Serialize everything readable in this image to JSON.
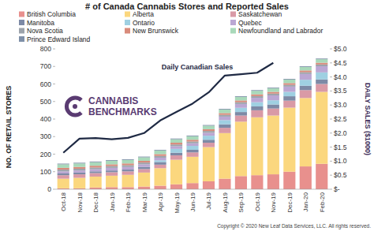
{
  "chart_data": {
    "type": "bar",
    "title": "# of Canada Cannabis Stores and Reported Sales",
    "y_label": "NO. OF RETAIL STORES",
    "y2_label": "DAILY SALES ($1000)",
    "annotations": [
      "CANNABIS",
      "BENCHMARKS",
      "Copyright © 2020 New Leaf Data Services, LLC. All rights reserved."
    ],
    "categories": [
      "Oct-18",
      "Nov-18",
      "Dec-18",
      "Jan-19",
      "Feb-19",
      "Mar-19",
      "Apr-19",
      "May-19",
      "Jun-19",
      "Jul-19",
      "Aug-19",
      "Sep-19",
      "Oct-19",
      "Nov-19",
      "Dec-19",
      "Jan-20",
      "Feb-20"
    ],
    "stacked": true,
    "grid": false,
    "legend": "top-left",
    "ylim": [
      0,
      800
    ],
    "yticks": [
      0,
      100,
      200,
      300,
      400,
      500,
      600,
      700,
      800
    ],
    "y2lim": [
      0,
      5
    ],
    "y2ticks": [
      {
        "value": 0,
        "label": "$-"
      },
      {
        "value": 0.5,
        "label": "$0.5"
      },
      {
        "value": 1,
        "label": "$1.0"
      },
      {
        "value": 1.5,
        "label": "$1.5"
      },
      {
        "value": 2,
        "label": "$2.0"
      },
      {
        "value": 2.5,
        "label": "$2.5"
      },
      {
        "value": 3,
        "label": "$3.0"
      },
      {
        "value": 3.5,
        "label": "$3.5"
      },
      {
        "value": 4,
        "label": "$4.0"
      },
      {
        "value": 4.5,
        "label": "$4.5"
      },
      {
        "value": 5,
        "label": "$5.0"
      }
    ],
    "series": [
      {
        "name": "British Columbia",
        "type": "bar",
        "color": "#e8908d",
        "values": [
          5,
          5,
          10,
          12,
          12,
          15,
          20,
          28,
          35,
          45,
          60,
          75,
          80,
          85,
          100,
          130,
          145
        ]
      },
      {
        "name": "Alberta",
        "type": "bar",
        "color": "#fbd77e",
        "values": [
          55,
          60,
          62,
          65,
          70,
          80,
          100,
          140,
          150,
          195,
          260,
          310,
          330,
          335,
          365,
          390,
          410
        ]
      },
      {
        "name": "Saskatchewan",
        "type": "bar",
        "color": "#d99aa6",
        "values": [
          20,
          20,
          20,
          20,
          20,
          20,
          20,
          25,
          25,
          25,
          30,
          35,
          40,
          40,
          40,
          45,
          45
        ]
      },
      {
        "name": "Manitoba",
        "type": "bar",
        "color": "#7d8aa6",
        "values": [
          10,
          10,
          10,
          10,
          10,
          12,
          15,
          15,
          15,
          17,
          20,
          20,
          22,
          23,
          25,
          25,
          26
        ]
      },
      {
        "name": "Ontario",
        "type": "bar",
        "color": "#9fd0e2",
        "values": [
          0,
          0,
          0,
          0,
          0,
          0,
          10,
          22,
          22,
          23,
          24,
          24,
          24,
          24,
          25,
          34,
          40
        ]
      },
      {
        "name": "Quebec",
        "type": "bar",
        "color": "#bba7d3",
        "values": [
          12,
          12,
          12,
          15,
          15,
          15,
          15,
          15,
          15,
          17,
          20,
          22,
          25,
          28,
          30,
          33,
          35
        ]
      },
      {
        "name": "Nova Scotia",
        "type": "bar",
        "color": "#9ca3ab",
        "values": [
          10,
          10,
          10,
          10,
          10,
          10,
          10,
          10,
          10,
          10,
          10,
          10,
          10,
          10,
          10,
          10,
          10
        ]
      },
      {
        "name": "New Brunswick",
        "type": "bar",
        "color": "#d98b7b",
        "values": [
          10,
          10,
          10,
          10,
          10,
          10,
          10,
          10,
          10,
          10,
          10,
          10,
          10,
          10,
          10,
          10,
          10
        ]
      },
      {
        "name": "Newfoundland and Labrador",
        "type": "bar",
        "color": "#a9d9ba",
        "values": [
          20,
          20,
          20,
          20,
          20,
          20,
          20,
          20,
          20,
          20,
          20,
          20,
          20,
          20,
          20,
          20,
          20
        ]
      },
      {
        "name": "Prince Edward Island",
        "type": "bar",
        "color": "#7f90a8",
        "values": [
          4,
          4,
          4,
          4,
          4,
          4,
          4,
          4,
          4,
          4,
          4,
          4,
          4,
          4,
          4,
          4,
          4
        ]
      },
      {
        "name": "Daily Canadian Sales",
        "type": "line",
        "axis": "y2",
        "color": "#1f2a44",
        "values": [
          1.3,
          1.8,
          1.82,
          1.78,
          1.83,
          2.0,
          2.45,
          2.75,
          3.05,
          3.45,
          4.05,
          4.1,
          4.15,
          4.5,
          null,
          null,
          null
        ]
      }
    ]
  }
}
